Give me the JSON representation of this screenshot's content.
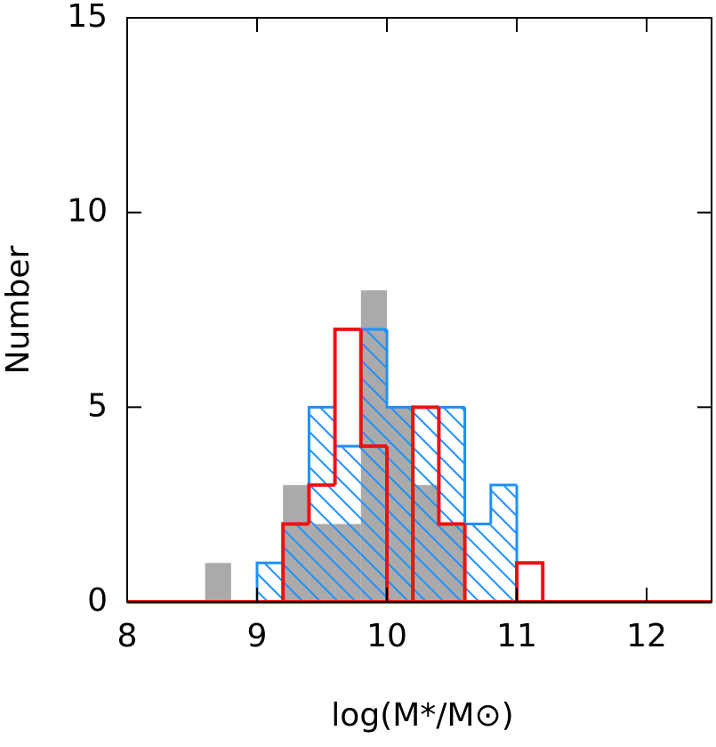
{
  "chart_data": {
    "type": "histogram",
    "x_label": "log(M*/M⊙)",
    "y_label": "Number",
    "bins": [
      8.6,
      8.8,
      9.0,
      9.2,
      9.4,
      9.6,
      9.8,
      10.0,
      10.2,
      10.4,
      10.6,
      10.8,
      11.0,
      11.2
    ],
    "series": [
      {
        "color": "#aaaaaa",
        "style": "filled",
        "values": [
          1,
          0,
          0,
          3,
          2,
          2,
          8,
          5,
          3,
          2,
          0,
          0,
          0
        ]
      },
      {
        "color": "#1e90ff",
        "style": "hatched",
        "values": [
          0,
          0,
          1,
          2,
          5,
          4,
          7,
          5,
          5,
          5,
          2,
          3,
          0
        ]
      },
      {
        "color": "#ee1111",
        "style": "step",
        "values": [
          0,
          0,
          0,
          2,
          3,
          7,
          4,
          0,
          5,
          2,
          0,
          0,
          1
        ]
      }
    ],
    "xlim": [
      8,
      12.5
    ],
    "ylim": [
      0,
      15
    ],
    "xticks": [
      8,
      9,
      10,
      11,
      12
    ],
    "yticks": [
      0,
      5,
      10,
      15
    ]
  }
}
